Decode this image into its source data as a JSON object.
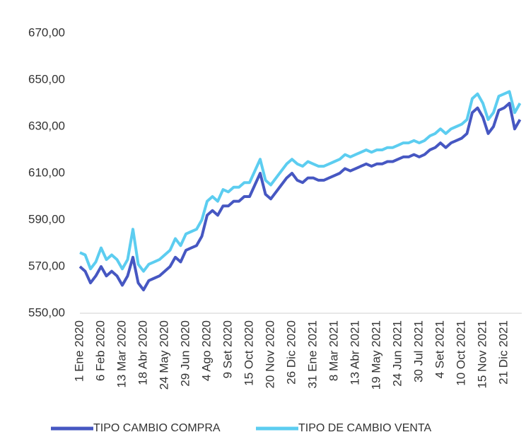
{
  "chart_data": {
    "type": "line",
    "categories": [
      "1 Ene 2020",
      null,
      null,
      null,
      "6 Feb 2020",
      null,
      null,
      null,
      "13 Mar 2020",
      null,
      null,
      null,
      "18 Abr 2020",
      null,
      null,
      null,
      "24 May 2020",
      null,
      null,
      null,
      "29 Jun 2020",
      null,
      null,
      null,
      "4 Ago 2020",
      null,
      null,
      null,
      "9 Set 2020",
      null,
      null,
      null,
      "15 Oct 2020",
      null,
      null,
      null,
      "20 Nov 2020",
      null,
      null,
      null,
      "26 Dic 2020",
      null,
      null,
      null,
      "31 Ene 2021",
      null,
      null,
      null,
      "8 Mar 2021",
      null,
      null,
      null,
      "13 Abr 2021",
      null,
      null,
      null,
      "19 May 2021",
      null,
      null,
      null,
      "24 Jun 2021",
      null,
      null,
      null,
      "30 Jul 2021",
      null,
      null,
      null,
      "4 Set 2021",
      null,
      null,
      null,
      "10 Oct 2021",
      null,
      null,
      null,
      "15 Nov 2021",
      null,
      null,
      null,
      "21 Dic 2021",
      null,
      null,
      null
    ],
    "series": [
      {
        "name": "TIPO CAMBIO COMPRA",
        "color": "#4657c2",
        "values": [
          570,
          568,
          563,
          566,
          570,
          566,
          568,
          566,
          562,
          566,
          574,
          563,
          560,
          564,
          565,
          566,
          568,
          570,
          574,
          572,
          577,
          578,
          579,
          583,
          592,
          594,
          592,
          596,
          596,
          598,
          598,
          600,
          600,
          605,
          610,
          601,
          599,
          602,
          605,
          608,
          610,
          607,
          606,
          608,
          608,
          607,
          607,
          608,
          609,
          610,
          612,
          611,
          612,
          613,
          614,
          613,
          614,
          614,
          615,
          615,
          616,
          617,
          617,
          618,
          617,
          618,
          620,
          621,
          623,
          621,
          623,
          624,
          625,
          627,
          636,
          638,
          634,
          627,
          630,
          637,
          638,
          640,
          629,
          633
        ]
      },
      {
        "name": "TIPO DE CAMBIO VENTA",
        "color": "#5ccdf0",
        "values": [
          576,
          575,
          569,
          572,
          578,
          573,
          575,
          573,
          569,
          573,
          586,
          571,
          568,
          571,
          572,
          573,
          575,
          577,
          582,
          579,
          584,
          585,
          586,
          590,
          598,
          600,
          598,
          603,
          602,
          604,
          604,
          606,
          606,
          611,
          616,
          607,
          605,
          608,
          611,
          614,
          616,
          614,
          613,
          615,
          614,
          613,
          613,
          614,
          615,
          616,
          618,
          617,
          618,
          619,
          620,
          619,
          620,
          620,
          621,
          621,
          622,
          623,
          623,
          624,
          623,
          624,
          626,
          627,
          629,
          627,
          629,
          630,
          631,
          633,
          642,
          644,
          640,
          633,
          636,
          643,
          644,
          645,
          636,
          640
        ]
      }
    ],
    "ylim": [
      550,
      670
    ],
    "yticks": [
      {
        "value": 550,
        "label": "550,00"
      },
      {
        "value": 570,
        "label": "570,00"
      },
      {
        "value": 590,
        "label": "590,00"
      },
      {
        "value": 610,
        "label": "610,00"
      },
      {
        "value": 630,
        "label": "630,00"
      },
      {
        "value": 650,
        "label": "650,00"
      },
      {
        "value": 670,
        "label": "670,00"
      }
    ],
    "grid": false,
    "legend": "bottom"
  }
}
